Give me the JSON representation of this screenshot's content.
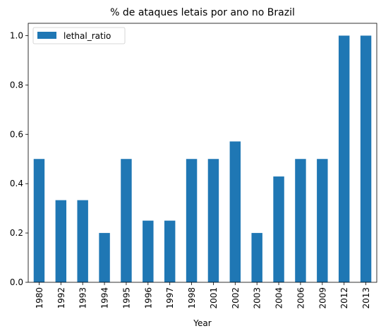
{
  "chart_data": {
    "type": "bar",
    "title": "% de ataques letais por ano no Brazil",
    "xlabel": "Year",
    "ylabel": "",
    "categories": [
      "1980",
      "1992",
      "1993",
      "1994",
      "1995",
      "1996",
      "1997",
      "1998",
      "2001",
      "2002",
      "2003",
      "2004",
      "2006",
      "2009",
      "2012",
      "2013"
    ],
    "series": [
      {
        "name": "lethal_ratio",
        "values": [
          0.5,
          0.333,
          0.333,
          0.2,
          0.5,
          0.25,
          0.25,
          0.5,
          0.5,
          0.571,
          0.2,
          0.429,
          0.5,
          0.5,
          1.0,
          1.0
        ]
      }
    ],
    "ylim": [
      0,
      1.05
    ],
    "yticks": [
      "0.0",
      "0.2",
      "0.4",
      "0.6",
      "0.8",
      "1.0"
    ],
    "grid": false,
    "legend_position": "top-left",
    "bar_color": "#1f77b4"
  }
}
